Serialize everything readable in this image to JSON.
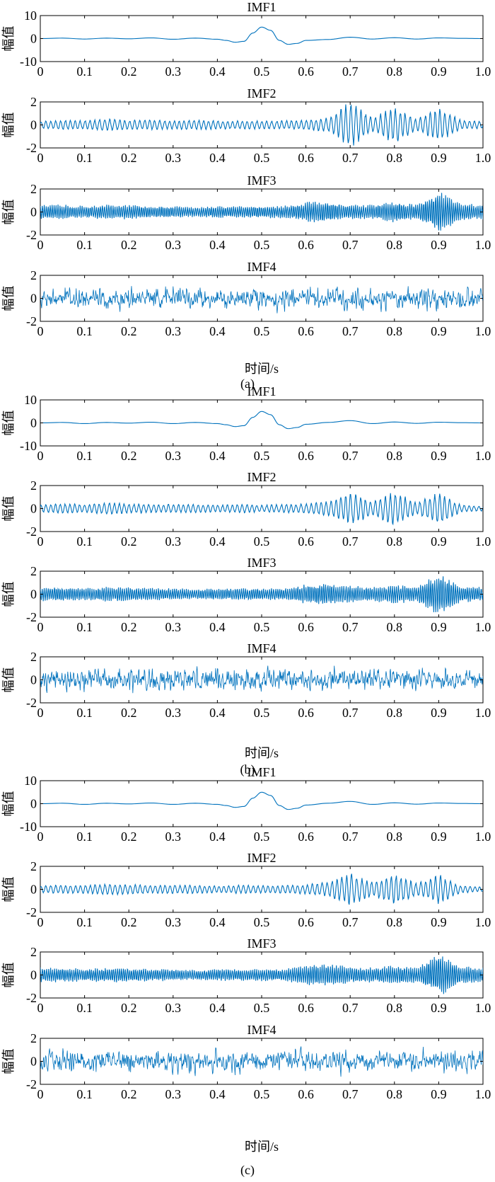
{
  "line_color": "#0072BD",
  "panel_labels": [
    "(a)",
    "(b)",
    "(c)"
  ],
  "xlabel": "时间/s",
  "chart_data": [
    {
      "group": "(a)",
      "type": "line",
      "subplots": [
        {
          "title": "IMF1",
          "ylabel": "幅值",
          "xlim": [
            0,
            1.0
          ],
          "ylim": [
            -10,
            10
          ],
          "xticks": [
            "0",
            "0.1",
            "0.2",
            "0.3",
            "0.4",
            "0.5",
            "0.6",
            "0.7",
            "0.8",
            "0.9",
            "1.0"
          ],
          "yticks": [
            "10",
            "0",
            "-10"
          ],
          "series": [
            {
              "x": [
                0,
                0.05,
                0.1,
                0.15,
                0.2,
                0.25,
                0.3,
                0.35,
                0.4,
                0.42,
                0.44,
                0.46,
                0.48,
                0.5,
                0.52,
                0.54,
                0.56,
                0.58,
                0.6,
                0.65,
                0.7,
                0.75,
                0.8,
                0.85,
                0.9,
                0.95,
                1.0
              ],
              "y": [
                0,
                0.2,
                -0.2,
                0.2,
                -0.1,
                0.3,
                -0.3,
                0.2,
                -0.3,
                -0.8,
                -1.6,
                -1.2,
                2.4,
                5,
                3.6,
                -0.8,
                -2.5,
                -2.1,
                -0.8,
                -0.4,
                0.6,
                -0.2,
                0.4,
                -0.2,
                0.3,
                0.1,
                0
              ]
            }
          ]
        },
        {
          "title": "IMF2",
          "ylabel": "幅值",
          "xlim": [
            0,
            1.0
          ],
          "ylim": [
            -2,
            2
          ],
          "xticks": [
            "0",
            "0.1",
            "0.2",
            "0.3",
            "0.4",
            "0.5",
            "0.6",
            "0.7",
            "0.8",
            "0.9",
            "1.0"
          ],
          "yticks": [
            "2",
            "0",
            "-2"
          ],
          "series": [
            {
              "envelope": [
                0.3,
                0.4,
                0.35,
                0.5,
                0.4,
                0.4,
                0.35,
                0.4,
                0.35,
                0.35,
                0.35,
                0.35,
                0.4,
                0.6,
                1.9,
                0.6,
                1.5,
                0.5,
                1.4,
                0.4,
                0.3
              ],
              "cycles": 90,
              "bursts": [
                0.7,
                0.8,
                0.9
              ]
            }
          ]
        },
        {
          "title": "IMF3",
          "ylabel": "幅值",
          "xlim": [
            0,
            1.0
          ],
          "ylim": [
            -2,
            2
          ],
          "xticks": [
            "0",
            "0.1",
            "0.2",
            "0.3",
            "0.4",
            "0.5",
            "0.6",
            "0.7",
            "0.8",
            "0.9",
            "1.0"
          ],
          "yticks": [
            "2",
            "0",
            "-2"
          ],
          "series": [
            {
              "envelope": [
                0.6,
                0.6,
                0.5,
                0.6,
                0.6,
                0.5,
                0.5,
                0.4,
                0.5,
                0.5,
                0.5,
                0.5,
                0.8,
                0.9,
                0.6,
                0.6,
                0.9,
                0.6,
                1.8,
                0.7,
                0.6
              ],
              "cycles": 220,
              "bursts": [
                0.56,
                0.9
              ]
            }
          ]
        },
        {
          "title": "IMF4",
          "ylabel": "幅值",
          "xlim": [
            0,
            1.0
          ],
          "ylim": [
            -2,
            2
          ],
          "xticks": [
            "0",
            "0.1",
            "0.2",
            "0.3",
            "0.4",
            "0.5",
            "0.6",
            "0.7",
            "0.8",
            "0.9",
            "1.0"
          ],
          "yticks": [
            "2",
            "0",
            "-2"
          ],
          "series": [
            {
              "noise_amplitude": 1.0,
              "samples": 1000
            }
          ]
        }
      ]
    },
    {
      "group": "(b)",
      "type": "line",
      "subplots": [
        {
          "title": "IMF1",
          "ylabel": "幅值",
          "xlim": [
            0,
            1.0
          ],
          "ylim": [
            -10,
            10
          ],
          "xticks": [
            "0",
            "0.1",
            "0.2",
            "0.3",
            "0.4",
            "0.5",
            "0.6",
            "0.7",
            "0.8",
            "0.9",
            "1.0"
          ],
          "yticks": [
            "10",
            "0",
            "-10"
          ],
          "series": [
            {
              "x": [
                0,
                0.05,
                0.1,
                0.15,
                0.2,
                0.25,
                0.3,
                0.35,
                0.4,
                0.42,
                0.44,
                0.46,
                0.48,
                0.5,
                0.52,
                0.54,
                0.56,
                0.58,
                0.6,
                0.65,
                0.7,
                0.75,
                0.8,
                0.85,
                0.9,
                0.95,
                1.0
              ],
              "y": [
                0,
                0.2,
                -0.3,
                0.2,
                -0.1,
                0.3,
                -0.3,
                0.2,
                -0.3,
                -0.8,
                -1.6,
                -1.2,
                2.4,
                5,
                3.6,
                -0.8,
                -2.5,
                -2.0,
                -0.6,
                0.2,
                1.0,
                -0.3,
                0.4,
                -0.2,
                0.3,
                0.1,
                0
              ]
            }
          ]
        },
        {
          "title": "IMF2",
          "ylabel": "幅值",
          "xlim": [
            0,
            1.0
          ],
          "ylim": [
            -2,
            2
          ],
          "xticks": [
            "0",
            "0.1",
            "0.2",
            "0.3",
            "0.4",
            "0.5",
            "0.6",
            "0.7",
            "0.8",
            "0.9",
            "1.0"
          ],
          "yticks": [
            "2",
            "0",
            "-2"
          ],
          "series": [
            {
              "envelope": [
                0.3,
                0.4,
                0.35,
                0.5,
                0.4,
                0.35,
                0.35,
                0.35,
                0.3,
                0.35,
                0.3,
                0.35,
                0.4,
                0.6,
                1.4,
                0.6,
                1.4,
                0.5,
                1.3,
                0.3,
                0.2
              ],
              "cycles": 90,
              "bursts": [
                0.7,
                0.8,
                0.9
              ]
            }
          ]
        },
        {
          "title": "IMF3",
          "ylabel": "幅值",
          "xlim": [
            0,
            1.0
          ],
          "ylim": [
            -2,
            2
          ],
          "xticks": [
            "0",
            "0.1",
            "0.2",
            "0.3",
            "0.4",
            "0.5",
            "0.6",
            "0.7",
            "0.8",
            "0.9",
            "1.0"
          ],
          "yticks": [
            "2",
            "0",
            "-2"
          ],
          "series": [
            {
              "envelope": [
                0.6,
                0.6,
                0.5,
                0.6,
                0.6,
                0.5,
                0.5,
                0.4,
                0.5,
                0.5,
                0.5,
                0.5,
                0.8,
                0.9,
                0.7,
                0.6,
                0.8,
                0.6,
                1.8,
                0.7,
                0.6
              ],
              "cycles": 220,
              "bursts": [
                0.56,
                0.9
              ]
            }
          ]
        },
        {
          "title": "IMF4",
          "ylabel": "幅值",
          "xlim": [
            0,
            1.0
          ],
          "ylim": [
            -2,
            2
          ],
          "xticks": [
            "0",
            "0.1",
            "0.2",
            "0.3",
            "0.4",
            "0.5",
            "0.6",
            "0.7",
            "0.8",
            "0.9",
            "1.0"
          ],
          "yticks": [
            "2",
            "0",
            "-2"
          ],
          "series": [
            {
              "noise_amplitude": 1.0,
              "samples": 1000
            }
          ]
        }
      ]
    },
    {
      "group": "(c)",
      "type": "line",
      "subplots": [
        {
          "title": "IMF1",
          "ylabel": "幅值",
          "xlim": [
            0,
            1.0
          ],
          "ylim": [
            -10,
            10
          ],
          "xticks": [
            "0",
            "0.1",
            "0.2",
            "0.3",
            "0.4",
            "0.5",
            "0.6",
            "0.7",
            "0.8",
            "0.9",
            "1.0"
          ],
          "yticks": [
            "10",
            "0",
            "-10"
          ],
          "series": [
            {
              "x": [
                0,
                0.05,
                0.1,
                0.15,
                0.2,
                0.25,
                0.3,
                0.35,
                0.4,
                0.42,
                0.44,
                0.46,
                0.48,
                0.5,
                0.52,
                0.54,
                0.56,
                0.58,
                0.6,
                0.65,
                0.7,
                0.75,
                0.8,
                0.85,
                0.9,
                0.95,
                1.0
              ],
              "y": [
                0,
                0.2,
                -0.3,
                0.2,
                -0.1,
                0.3,
                -0.3,
                0.2,
                -0.3,
                -0.8,
                -1.6,
                -1.2,
                2.4,
                5,
                3.6,
                -0.8,
                -2.5,
                -2.0,
                -0.6,
                0.2,
                1.0,
                -0.3,
                0.4,
                -0.2,
                0.3,
                0.1,
                0
              ]
            }
          ]
        },
        {
          "title": "IMF2",
          "ylabel": "幅值",
          "xlim": [
            0,
            1.0
          ],
          "ylim": [
            -2,
            2
          ],
          "xticks": [
            "0",
            "0.1",
            "0.2",
            "0.3",
            "0.4",
            "0.5",
            "0.6",
            "0.7",
            "0.8",
            "0.9",
            "1.0"
          ],
          "yticks": [
            "2",
            "0",
            "-2"
          ],
          "series": [
            {
              "envelope": [
                0.3,
                0.35,
                0.35,
                0.45,
                0.4,
                0.35,
                0.35,
                0.35,
                0.3,
                0.35,
                0.3,
                0.35,
                0.4,
                0.6,
                1.3,
                0.6,
                1.3,
                0.5,
                1.2,
                0.3,
                0.2
              ],
              "cycles": 90,
              "bursts": [
                0.7,
                0.8,
                0.9
              ]
            }
          ]
        },
        {
          "title": "IMF3",
          "ylabel": "幅值",
          "xlim": [
            0,
            1.0
          ],
          "ylim": [
            -2,
            2
          ],
          "xticks": [
            "0",
            "0.1",
            "0.2",
            "0.3",
            "0.4",
            "0.5",
            "0.6",
            "0.7",
            "0.8",
            "0.9",
            "1.0"
          ],
          "yticks": [
            "2",
            "0",
            "-2"
          ],
          "series": [
            {
              "envelope": [
                0.6,
                0.6,
                0.5,
                0.6,
                0.6,
                0.5,
                0.5,
                0.4,
                0.5,
                0.5,
                0.5,
                0.5,
                0.8,
                0.9,
                0.7,
                0.6,
                0.8,
                0.6,
                1.8,
                0.7,
                0.6
              ],
              "cycles": 220,
              "bursts": [
                0.56,
                0.9
              ]
            }
          ]
        },
        {
          "title": "IMF4",
          "ylabel": "幅值",
          "xlim": [
            0,
            1.0
          ],
          "ylim": [
            -2,
            2
          ],
          "xticks": [
            "0",
            "0.1",
            "0.2",
            "0.3",
            "0.4",
            "0.5",
            "0.6",
            "0.7",
            "0.8",
            "0.9",
            "1.0"
          ],
          "yticks": [
            "2",
            "0",
            "-2"
          ],
          "series": [
            {
              "noise_amplitude": 1.0,
              "samples": 1000
            }
          ]
        }
      ]
    }
  ]
}
